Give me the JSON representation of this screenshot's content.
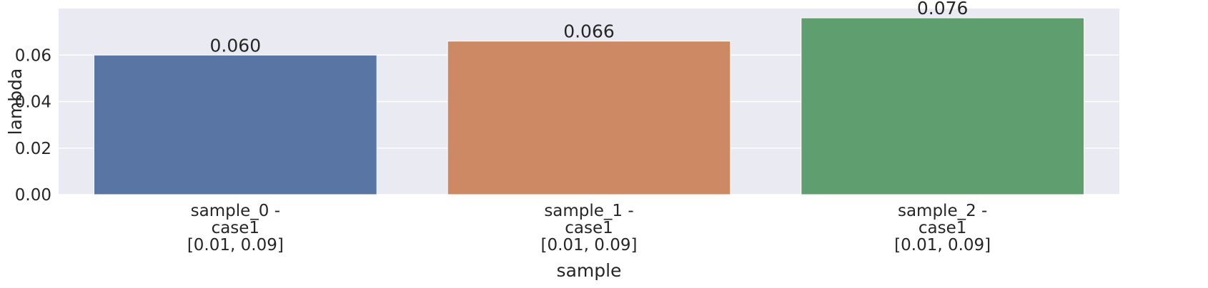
{
  "chart_data": {
    "type": "bar",
    "xlabel": "sample",
    "ylabel": "lambda",
    "ylim": [
      0,
      0.08
    ],
    "yticks": [
      0.0,
      0.02,
      0.04,
      0.06
    ],
    "ytick_labels": [
      "0.00",
      "0.02",
      "0.04",
      "0.06"
    ],
    "categories": [
      [
        "sample_0 -",
        "case1",
        "[0.01, 0.09]"
      ],
      [
        "sample_1 -",
        "case1",
        "[0.01, 0.09]"
      ],
      [
        "sample_2 -",
        "case1",
        "[0.01, 0.09]"
      ]
    ],
    "values": [
      0.06,
      0.066,
      0.076
    ],
    "value_labels": [
      "0.060",
      "0.066",
      "0.076"
    ],
    "colors": [
      "#5875a4",
      "#cc8963",
      "#5f9e6e"
    ],
    "grid": true,
    "background": "#eaeaf2"
  }
}
